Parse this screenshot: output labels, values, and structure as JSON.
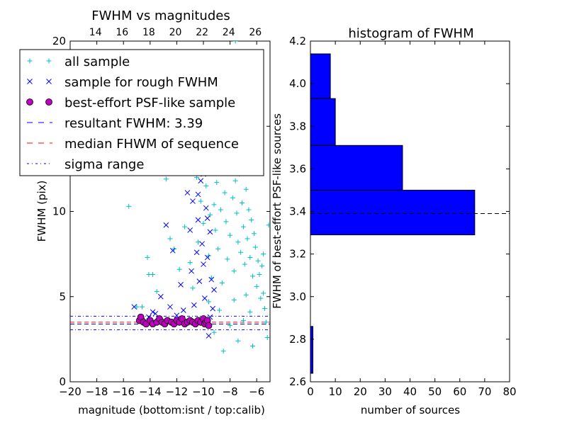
{
  "chart_data": [
    {
      "type": "scatter",
      "title": "FWHM vs magnitudes",
      "xlabel": "magnitude (bottom:isnt / top:calib)",
      "ylabel": "FWHM (pix)",
      "xlim": [
        -20,
        -5
      ],
      "ylim": [
        0,
        20
      ],
      "x_ticks": [
        "−20",
        "−18",
        "−16",
        "−14",
        "−12",
        "−10",
        "−8",
        "−6"
      ],
      "x_tick_values": [
        -20,
        -18,
        -16,
        -14,
        -12,
        -10,
        -8,
        -6
      ],
      "y_ticks": [
        "0",
        "5",
        "10",
        "15",
        "20"
      ],
      "y_tick_values": [
        0,
        5,
        10,
        15,
        20
      ],
      "top_axis_ticks": [
        "14",
        "16",
        "18",
        "20",
        "22",
        "24",
        "26"
      ],
      "top_axis_tick_positions": [
        -18.1,
        -16.1,
        -14.1,
        -12.1,
        -10.1,
        -8.1,
        -6.1
      ],
      "legend_placement": "upper-left",
      "legend": [
        {
          "label": "all sample",
          "marker": "plus",
          "color": "#00bfbf"
        },
        {
          "label": "sample for rough FWHM",
          "marker": "x",
          "color": "#0000ff"
        },
        {
          "label": "best-effort PSF-like sample",
          "marker": "circle",
          "color": "#bf00bf"
        },
        {
          "label": "resultant FWHM: 3.39",
          "marker": "dashed",
          "color": "#0000ff"
        },
        {
          "label": "median FHWM of sequence",
          "marker": "dashed",
          "color": "#ff0000"
        },
        {
          "label": "sigma range",
          "marker": "dashdot",
          "color": "#0000ff"
        }
      ],
      "lines": {
        "resultant_fwhm": 3.39,
        "median_fwhm": 3.5,
        "sigma_range": [
          3.05,
          3.85
        ]
      },
      "series": [
        {
          "name": "all sample",
          "points": [
            [
              -15.6,
              10.3
            ],
            [
              -15.0,
              4.4
            ],
            [
              -14.6,
              4.4
            ],
            [
              -14.2,
              7.3
            ],
            [
              -14.1,
              6.3
            ],
            [
              -13.8,
              6.3
            ],
            [
              -13.5,
              5.3
            ],
            [
              -12.8,
              11.9
            ],
            [
              -12.5,
              8.4
            ],
            [
              -12.2,
              7.8
            ],
            [
              -11.8,
              6.6
            ],
            [
              -11.4,
              9.1
            ],
            [
              -11.0,
              7.0
            ],
            [
              -10.8,
              5.5
            ],
            [
              -10.4,
              8.2
            ],
            [
              -10.2,
              10.6
            ],
            [
              -10.0,
              9.3
            ],
            [
              -9.8,
              11.5
            ],
            [
              -9.7,
              12.3
            ],
            [
              -9.6,
              7.4
            ],
            [
              -9.5,
              9.8
            ],
            [
              -9.4,
              6.1
            ],
            [
              -9.3,
              12.8
            ],
            [
              -9.2,
              10.4
            ],
            [
              -9.1,
              8.9
            ],
            [
              -9.0,
              11.7
            ],
            [
              -8.9,
              7.8
            ],
            [
              -8.8,
              13.3
            ],
            [
              -8.7,
              10.1
            ],
            [
              -8.6,
              5.8
            ],
            [
              -8.5,
              14.1
            ],
            [
              -8.4,
              11.1
            ],
            [
              -8.3,
              9.4
            ],
            [
              -8.2,
              7.2
            ],
            [
              -8.1,
              12.6
            ],
            [
              -8.0,
              8.6
            ],
            [
              -7.9,
              13.7
            ],
            [
              -7.8,
              10.8
            ],
            [
              -7.7,
              6.5
            ],
            [
              -7.6,
              11.8
            ],
            [
              -7.5,
              9.9
            ],
            [
              -7.4,
              8.2
            ],
            [
              -7.3,
              12.2
            ],
            [
              -7.2,
              7.6
            ],
            [
              -7.1,
              10.5
            ],
            [
              -7.0,
              9.1
            ],
            [
              -6.9,
              6.9
            ],
            [
              -6.8,
              11.3
            ],
            [
              -6.7,
              8.4
            ],
            [
              -6.6,
              10.1
            ],
            [
              -6.5,
              7.3
            ],
            [
              -6.4,
              9.5
            ],
            [
              -6.3,
              6.2
            ],
            [
              -6.2,
              8.7
            ],
            [
              -6.1,
              7.9
            ],
            [
              -6.0,
              5.6
            ],
            [
              -5.9,
              7.1
            ],
            [
              -5.8,
              6.3
            ],
            [
              -5.7,
              4.9
            ],
            [
              -5.6,
              6.8
            ],
            [
              -5.5,
              5.2
            ],
            [
              -5.4,
              4.3
            ],
            [
              -5.3,
              3.5
            ],
            [
              -5.2,
              2.6
            ],
            [
              -6.3,
              2.1
            ],
            [
              -7.4,
              2.4
            ],
            [
              -8.5,
              1.8
            ],
            [
              -9.2,
              2.9
            ],
            [
              -8.0,
              3.3
            ],
            [
              -7.0,
              3.6
            ],
            [
              -6.5,
              4.1
            ],
            [
              -9.6,
              4.7
            ],
            [
              -8.8,
              4.2
            ],
            [
              -7.7,
              4.8
            ],
            [
              -6.8,
              5.1
            ],
            [
              -5.5,
              7.5
            ],
            [
              -5.1,
              9.2
            ],
            [
              -6.0,
              13.6
            ],
            [
              -7.3,
              15.4
            ],
            [
              -8.2,
              16.8
            ],
            [
              -9.1,
              17.5
            ],
            [
              -6.6,
              19.3
            ],
            [
              -7.6,
              20.0
            ],
            [
              -8.6,
              15.0
            ],
            [
              -9.9,
              14.6
            ],
            [
              -10.5,
              12.0
            ]
          ]
        },
        {
          "name": "sample for rough FWHM",
          "points": [
            [
              -15.2,
              4.4
            ],
            [
              -14.6,
              3.6
            ],
            [
              -14.1,
              3.8
            ],
            [
              -13.8,
              4.1
            ],
            [
              -13.6,
              4.0
            ],
            [
              -13.2,
              5.0
            ],
            [
              -13.0,
              3.6
            ],
            [
              -12.8,
              9.2
            ],
            [
              -12.5,
              4.4
            ],
            [
              -12.3,
              7.7
            ],
            [
              -12.0,
              3.9
            ],
            [
              -11.7,
              5.7
            ],
            [
              -11.5,
              4.2
            ],
            [
              -11.3,
              13.2
            ],
            [
              -11.2,
              11.1
            ],
            [
              -11.0,
              8.9
            ],
            [
              -10.9,
              6.5
            ],
            [
              -10.8,
              10.6
            ],
            [
              -10.7,
              4.5
            ],
            [
              -10.6,
              12.7
            ],
            [
              -10.5,
              7.6
            ],
            [
              -10.4,
              9.5
            ],
            [
              -10.3,
              5.9
            ],
            [
              -10.2,
              11.8
            ],
            [
              -10.1,
              8.1
            ],
            [
              -10.0,
              6.9
            ],
            [
              -9.9,
              4.9
            ],
            [
              -9.8,
              10.2
            ],
            [
              -9.7,
              7.3
            ],
            [
              -9.6,
              2.7
            ],
            [
              -9.5,
              8.8
            ],
            [
              -9.4,
              6.0
            ],
            [
              -9.3,
              4.3
            ],
            [
              -9.2,
              5.4
            ],
            [
              -9.7,
              9.6
            ],
            [
              -10.0,
              12.2
            ],
            [
              -10.4,
              11.0
            ],
            [
              -9.5,
              3.8
            ]
          ]
        },
        {
          "name": "best-effort PSF-like sample",
          "points": [
            [
              -14.8,
              3.6
            ],
            [
              -14.7,
              3.8
            ],
            [
              -14.5,
              3.5
            ],
            [
              -14.3,
              3.4
            ],
            [
              -14.0,
              3.6
            ],
            [
              -13.8,
              3.4
            ],
            [
              -13.5,
              3.5
            ],
            [
              -13.3,
              3.7
            ],
            [
              -13.1,
              3.5
            ],
            [
              -12.9,
              3.4
            ],
            [
              -12.7,
              3.6
            ],
            [
              -12.4,
              3.5
            ],
            [
              -12.2,
              3.4
            ],
            [
              -12.0,
              3.6
            ],
            [
              -11.8,
              3.5
            ],
            [
              -11.6,
              3.7
            ],
            [
              -11.4,
              3.4
            ],
            [
              -11.2,
              3.5
            ],
            [
              -11.0,
              3.6
            ],
            [
              -10.8,
              3.5
            ],
            [
              -10.6,
              3.4
            ],
            [
              -10.4,
              3.6
            ],
            [
              -10.2,
              3.5
            ],
            [
              -10.0,
              3.7
            ],
            [
              -9.9,
              3.4
            ],
            [
              -9.8,
              3.5
            ],
            [
              -9.7,
              3.6
            ],
            [
              -9.6,
              3.3
            ]
          ]
        }
      ]
    },
    {
      "type": "bar",
      "orientation": "horizontal",
      "title": "histogram of FWHM",
      "xlabel": "number of sources",
      "ylabel": "FWHM of best-effort PSF-like sources",
      "xlim": [
        0,
        80
      ],
      "ylim": [
        2.6,
        4.2
      ],
      "x_ticks": [
        "0",
        "10",
        "20",
        "30",
        "40",
        "50",
        "60",
        "70",
        "80"
      ],
      "x_tick_values": [
        0,
        10,
        20,
        30,
        40,
        50,
        60,
        70,
        80
      ],
      "y_ticks": [
        "2.6",
        "2.8",
        "3.0",
        "3.2",
        "3.4",
        "3.6",
        "3.8",
        "4.0",
        "4.2"
      ],
      "y_tick_values": [
        2.6,
        2.8,
        3.0,
        3.2,
        3.4,
        3.6,
        3.8,
        4.0,
        4.2
      ],
      "bar_color": "#0000ff",
      "bins": [
        {
          "low": 2.64,
          "high": 2.86,
          "count": 1
        },
        {
          "low": 3.29,
          "high": 3.5,
          "count": 66
        },
        {
          "low": 3.5,
          "high": 3.71,
          "count": 37
        },
        {
          "low": 3.71,
          "high": 3.93,
          "count": 10
        },
        {
          "low": 3.93,
          "high": 4.14,
          "count": 8
        }
      ],
      "reference_line": 3.39
    }
  ]
}
